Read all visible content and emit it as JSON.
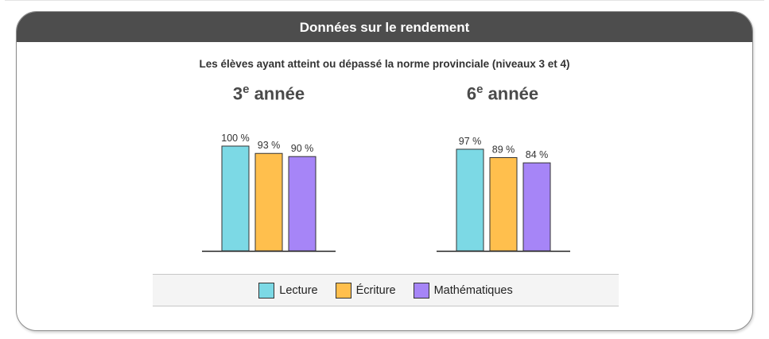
{
  "header": {
    "title": "Données sur le rendement"
  },
  "subtitle": "Les élèves ayant atteint ou dépassé la norme provinciale (niveaux 3 et 4)",
  "panels": [
    {
      "grade_number": "3",
      "grade_sup": "e",
      "grade_word": "année"
    },
    {
      "grade_number": "6",
      "grade_sup": "e",
      "grade_word": "année"
    }
  ],
  "legend": [
    {
      "label": "Lecture",
      "color": "#7cd9e5"
    },
    {
      "label": "Écriture",
      "color": "#ffbf4d"
    },
    {
      "label": "Mathématiques",
      "color": "#a685f7"
    }
  ],
  "chart_data": [
    {
      "type": "bar",
      "categories": [
        "Lecture",
        "Écriture",
        "Mathématiques"
      ],
      "values": [
        100,
        93,
        90
      ],
      "labels": [
        "100 %",
        "93 %",
        "90 %"
      ],
      "colors": [
        "#7cd9e5",
        "#ffbf4d",
        "#a685f7"
      ],
      "ylim": [
        0,
        100
      ]
    },
    {
      "type": "bar",
      "categories": [
        "Lecture",
        "Écriture",
        "Mathématiques"
      ],
      "values": [
        97,
        89,
        84
      ],
      "labels": [
        "97 %",
        "89 %",
        "84 %"
      ],
      "colors": [
        "#7cd9e5",
        "#ffbf4d",
        "#a685f7"
      ],
      "ylim": [
        0,
        100
      ]
    }
  ]
}
